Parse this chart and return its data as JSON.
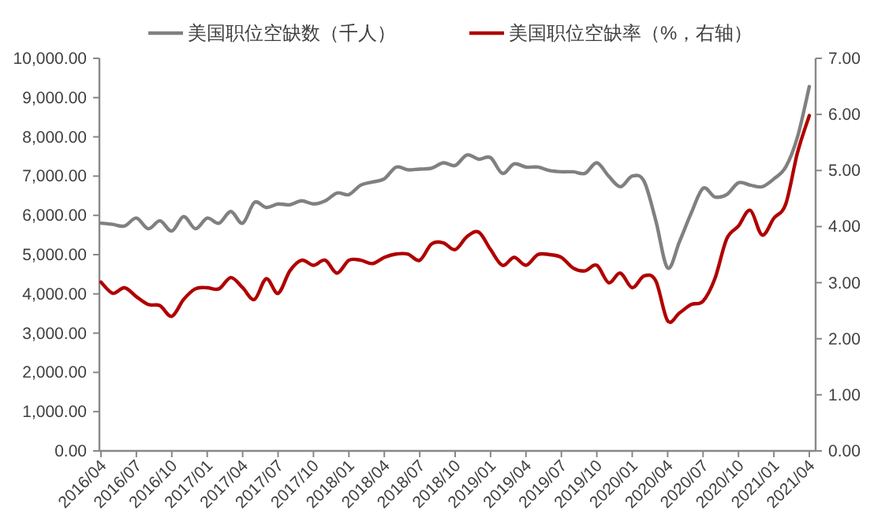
{
  "chart_data": {
    "type": "line",
    "categories": [
      "2016/04",
      null,
      null,
      "2016/07",
      null,
      null,
      "2016/10",
      null,
      null,
      "2017/01",
      null,
      null,
      "2017/04",
      null,
      null,
      "2017/07",
      null,
      null,
      "2017/10",
      null,
      null,
      "2018/01",
      null,
      null,
      "2018/04",
      null,
      null,
      "2018/07",
      null,
      null,
      "2018/10",
      null,
      null,
      "2019/01",
      null,
      null,
      "2019/04",
      null,
      null,
      "2019/07",
      null,
      null,
      "2019/10",
      null,
      null,
      "2020/01",
      null,
      null,
      "2020/04",
      null,
      null,
      "2020/07",
      null,
      null,
      "2020/10",
      null,
      null,
      "2021/01",
      null,
      null,
      "2021/04"
    ],
    "series": [
      {
        "name": "美国职位空缺数（千人）",
        "color": "#808080",
        "values": [
          5800,
          5770,
          5730,
          5930,
          5660,
          5860,
          5600,
          5970,
          5660,
          5930,
          5800,
          6100,
          5800,
          6330,
          6200,
          6290,
          6270,
          6370,
          6290,
          6370,
          6570,
          6530,
          6770,
          6850,
          6930,
          7230,
          7160,
          7180,
          7200,
          7340,
          7270,
          7540,
          7430,
          7470,
          7070,
          7310,
          7230,
          7230,
          7140,
          7110,
          7110,
          7070,
          7340,
          7000,
          6730,
          7000,
          6870,
          5860,
          4660,
          5330,
          6060,
          6690,
          6470,
          6530,
          6830,
          6770,
          6730,
          6930,
          7230,
          8000,
          9280
        ]
      },
      {
        "name": "美国职位空缺率（%，右轴）",
        "color": "#b00000",
        "axis": "y2",
        "values": [
          3.01,
          2.81,
          2.91,
          2.75,
          2.61,
          2.59,
          2.4,
          2.7,
          2.89,
          2.91,
          2.89,
          3.09,
          2.91,
          2.7,
          3.07,
          2.81,
          3.21,
          3.4,
          3.31,
          3.4,
          3.17,
          3.4,
          3.4,
          3.34,
          3.45,
          3.51,
          3.51,
          3.4,
          3.69,
          3.71,
          3.59,
          3.82,
          3.9,
          3.59,
          3.31,
          3.45,
          3.31,
          3.5,
          3.5,
          3.45,
          3.26,
          3.21,
          3.31,
          3.0,
          3.17,
          2.91,
          3.12,
          3.03,
          2.32,
          2.46,
          2.61,
          2.67,
          3.07,
          3.78,
          4.01,
          4.29,
          3.85,
          4.15,
          4.4,
          5.32,
          5.98
        ]
      }
    ],
    "ylim": [
      0,
      10000
    ],
    "yticks": [
      {
        "value": 0,
        "label": "0.00"
      },
      {
        "value": 1000,
        "label": "1,000.00"
      },
      {
        "value": 2000,
        "label": "2,000.00"
      },
      {
        "value": 3000,
        "label": "3,000.00"
      },
      {
        "value": 4000,
        "label": "4,000.00"
      },
      {
        "value": 5000,
        "label": "5,000.00"
      },
      {
        "value": 6000,
        "label": "6,000.00"
      },
      {
        "value": 7000,
        "label": "7,000.00"
      },
      {
        "value": 8000,
        "label": "8,000.00"
      },
      {
        "value": 9000,
        "label": "9,000.00"
      },
      {
        "value": 10000,
        "label": "10,000.00"
      }
    ],
    "y2lim": [
      0,
      7
    ],
    "y2ticks": [
      {
        "value": 0,
        "label": "0.00"
      },
      {
        "value": 1,
        "label": "1.00"
      },
      {
        "value": 2,
        "label": "2.00"
      },
      {
        "value": 3,
        "label": "3.00"
      },
      {
        "value": 4,
        "label": "4.00"
      },
      {
        "value": 5,
        "label": "5.00"
      },
      {
        "value": 6,
        "label": "6.00"
      },
      {
        "value": 7,
        "label": "7.00"
      }
    ],
    "legend": "top",
    "grid": false
  }
}
